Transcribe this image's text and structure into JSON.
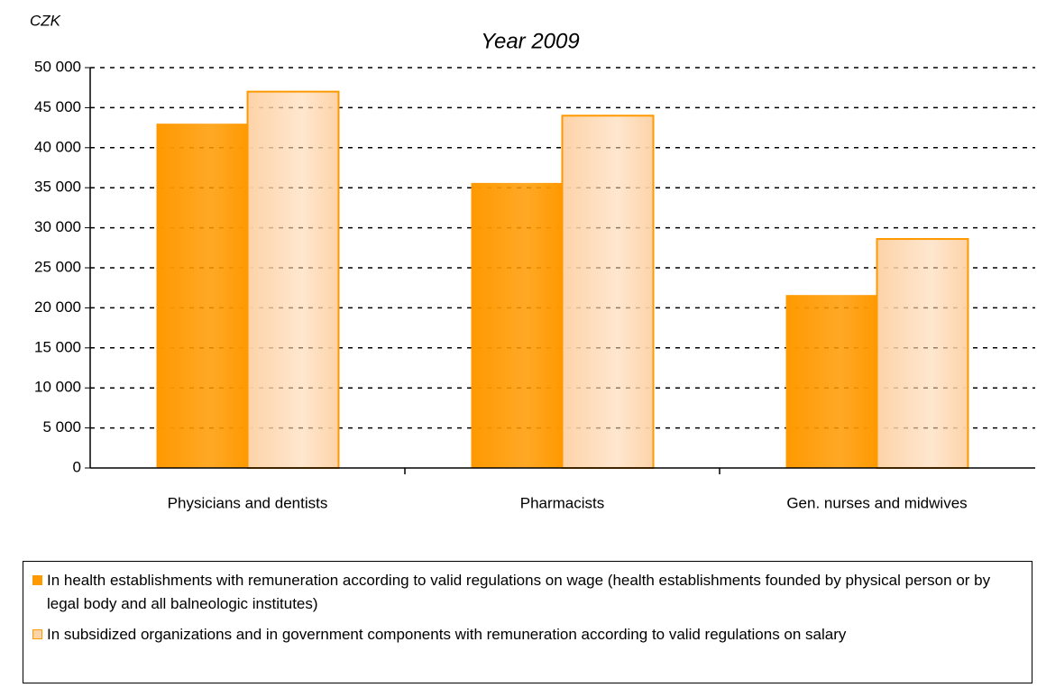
{
  "chart_data": {
    "type": "bar",
    "title": "Year 2009",
    "y_label": "CZK",
    "categories": [
      "Physicians and dentists",
      "Pharmacists",
      "Gen. nurses and midwives"
    ],
    "series": [
      {
        "name": "In health establishments with remuneration according to valid regulations on wage (health establishments founded by physical person or by legal body and all balneologic institutes)",
        "color": "#ff9900",
        "values": [
          43000,
          35600,
          21600
        ]
      },
      {
        "name": "In subsidized organizations and in government components with remuneration according to valid regulations on salary",
        "color": "#fdd3a8",
        "values": [
          47000,
          44000,
          28600
        ]
      }
    ],
    "ylim": [
      0,
      50000
    ],
    "yticks": [
      0,
      {
        "value": 5000,
        "label": "5 000"
      },
      {
        "value": 10000,
        "label": "10 000"
      },
      {
        "value": 15000,
        "label": "15 000"
      },
      {
        "value": 20000,
        "label": "20 000"
      },
      {
        "value": 25000,
        "label": "25 000"
      },
      {
        "value": 30000,
        "label": "30 000"
      },
      {
        "value": 35000,
        "label": "35 000"
      },
      {
        "value": 40000,
        "label": "40 000"
      },
      {
        "value": 45000,
        "label": "45 000"
      },
      {
        "value": 50000,
        "label": "50 000"
      }
    ],
    "grid": true
  }
}
